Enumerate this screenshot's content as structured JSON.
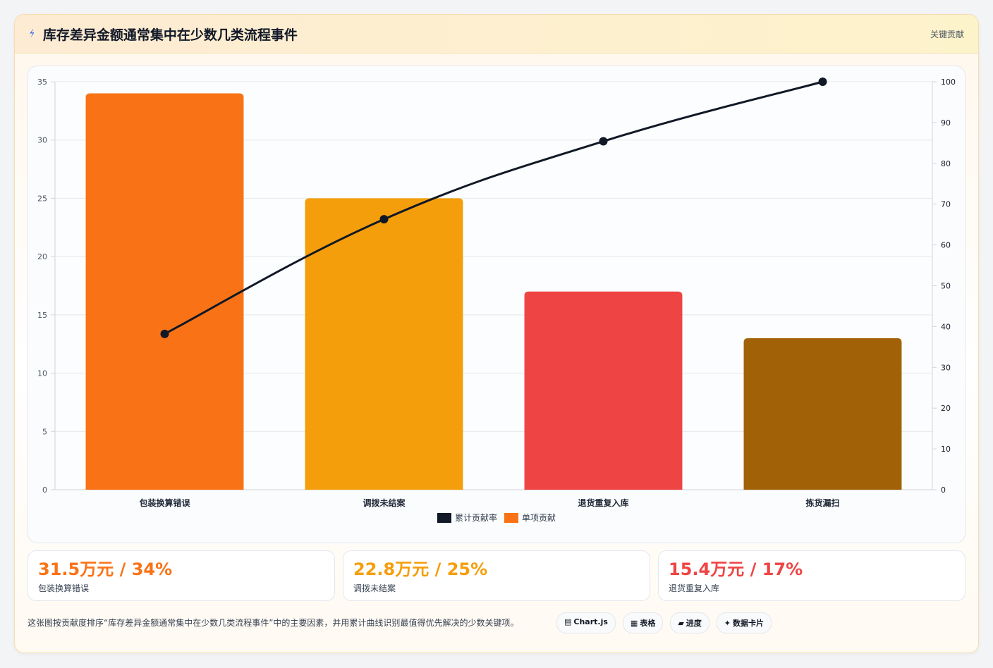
{
  "header": {
    "title": "库存差异金额通常集中在少数几类流程事件",
    "badge": "关键贡献",
    "icon": "bolt-icon"
  },
  "chart_data": {
    "type": "bar",
    "categories": [
      "包装换算错误",
      "调拨未结案",
      "退货重复入库",
      "拣货漏扫"
    ],
    "series": [
      {
        "name": "单项贡献",
        "type": "bar",
        "axis": "left",
        "values": [
          34,
          25,
          17,
          13
        ],
        "colors": [
          "#f97316",
          "#f59e0b",
          "#ef4444",
          "#a16207"
        ]
      },
      {
        "name": "累计贡献率",
        "type": "line",
        "axis": "right",
        "values": [
          38.2,
          66.3,
          85.4,
          100
        ],
        "color": "#111827"
      }
    ],
    "ylim": [
      0,
      35
    ],
    "yticks": [
      0,
      5,
      10,
      15,
      20,
      25,
      30,
      35
    ],
    "y2lim": [
      0,
      100
    ],
    "y2ticks": [
      0,
      10,
      20,
      30,
      40,
      50,
      60,
      70,
      80,
      90,
      100
    ],
    "legend": [
      "累计贡献率",
      "单项贡献"
    ],
    "legend_colors": [
      "#111827",
      "#f97316"
    ],
    "legend_position": "bottom",
    "grid": true
  },
  "stats": [
    {
      "value": "31.5万元 / 34%",
      "label": "包装换算错误",
      "color": "#f97316"
    },
    {
      "value": "22.8万元 / 25%",
      "label": "调拨未结案",
      "color": "#f59e0b"
    },
    {
      "value": "15.4万元 / 17%",
      "label": "退货重复入库",
      "color": "#ef4444"
    }
  ],
  "footer": {
    "note": "这张图按贡献度排序“库存差异金额通常集中在少数几类流程事件”中的主要因素，并用累计曲线识别最值得优先解决的少数关键项。",
    "tags": [
      {
        "icon": "▤",
        "label": "Chart.js"
      },
      {
        "icon": "▦",
        "label": "表格"
      },
      {
        "icon": "▰",
        "label": "进度"
      },
      {
        "icon": "✦",
        "label": "数据卡片"
      }
    ]
  }
}
